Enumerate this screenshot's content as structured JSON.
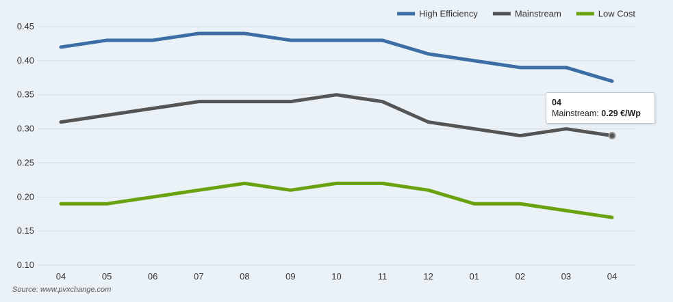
{
  "chart_data": {
    "type": "line",
    "categories": [
      "04",
      "05",
      "06",
      "07",
      "08",
      "09",
      "10",
      "11",
      "12",
      "01",
      "02",
      "03",
      "04"
    ],
    "series": [
      {
        "name": "High Efficiency",
        "color": "#3a6ea5",
        "values": [
          0.42,
          0.43,
          0.43,
          0.44,
          0.44,
          0.43,
          0.43,
          0.43,
          0.41,
          0.4,
          0.39,
          0.39,
          0.37
        ]
      },
      {
        "name": "Mainstream",
        "color": "#555555",
        "values": [
          0.31,
          0.32,
          0.33,
          0.34,
          0.34,
          0.34,
          0.35,
          0.34,
          0.31,
          0.3,
          0.29,
          0.3,
          0.29
        ]
      },
      {
        "name": "Low Cost",
        "color": "#6aa20f",
        "values": [
          0.19,
          0.19,
          0.2,
          0.21,
          0.22,
          0.21,
          0.22,
          0.22,
          0.21,
          0.19,
          0.19,
          0.18,
          0.17
        ]
      }
    ],
    "yticks": [
      "0.10",
      "0.15",
      "0.20",
      "0.25",
      "0.30",
      "0.35",
      "0.40",
      "0.45"
    ],
    "ylim": [
      0.1,
      0.45
    ],
    "grid": true,
    "legend_position": "top-right",
    "tooltip": {
      "title": "04",
      "series_label": "Mainstream:",
      "value_text": "0.29 €/Wp",
      "series_index": 1,
      "point_index": 12
    }
  },
  "source_text": "Source: www.pvxchange.com"
}
